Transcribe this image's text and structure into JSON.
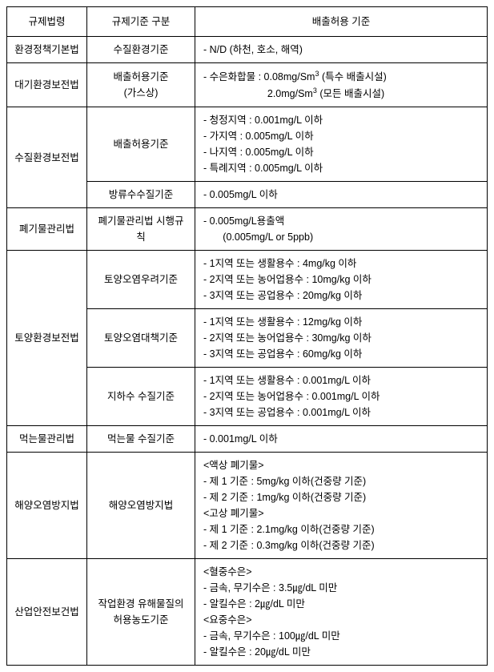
{
  "header": {
    "col1": "규제법령",
    "col2": "규제기준 구분",
    "col3": "배출허용 기준"
  },
  "rows": [
    {
      "law": "환경정책기본법",
      "criteria": "수질환경기준",
      "standard": "- N/D (하천, 호소, 해역)"
    },
    {
      "law": "대기환경보전법",
      "criteria": "배출허용기준\n(가스상)",
      "standard_prefix": "- 수은화합물 : 0.08mg/Sm",
      "standard_sup1": "3",
      "standard_mid1": "   (특수 배출시설)",
      "standard_line2_pre": "                       2.0mg/Sm",
      "standard_sup2": "3",
      "standard_mid2": "   (모든 배출시설)"
    },
    {
      "law": "수질환경보전법",
      "criteria1": "배출허용기준",
      "standard1": "- 청정지역 : 0.001mg/L 이하\n- 가지역 : 0.005mg/L 이하\n- 나지역 : 0.005mg/L 이하\n- 특례지역 : 0.005mg/L 이하",
      "criteria2": "방류수수질기준",
      "standard2": "- 0.005mg/L 이하"
    },
    {
      "law": "폐기물관리법",
      "criteria": "폐기물관리법 시행규칙",
      "standard": "- 0.005mg/L용출액\n       (0.005mg/L or 5ppb)"
    },
    {
      "law": "토양환경보전법",
      "criteria1": "토양오염우려기준",
      "standard1": "- 1지역 또는 생활용수 : 4mg/kg 이하\n- 2지역 또는 농어업용수 : 10mg/kg 이하\n- 3지역 또는 공업용수 : 20mg/kg 이하",
      "criteria2": "토양오염대책기준",
      "standard2": "- 1지역 또는 생활용수 : 12mg/kg 이하\n- 2지역 또는 농어업용수 : 30mg/kg 이하\n- 3지역 또는 공업용수 : 60mg/kg 이하",
      "criteria3": "지하수 수질기준",
      "standard3": "- 1지역 또는 생활용수 : 0.001mg/L 이하\n- 2지역 또는 농어업용수 : 0.001mg/L 이하\n- 3지역 또는 공업용수 : 0.001mg/L 이하"
    },
    {
      "law": "먹는물관리법",
      "criteria": "먹는물 수질기준",
      "standard": "- 0.001mg/L 이하"
    },
    {
      "law": "해양오염방지법",
      "criteria": "해양오염방지법",
      "standard": "<액상 폐기물>\n- 제 1 기준 : 5mg/kg 이하(건중량 기준)\n- 제 2 기준 : 1mg/kg 이하(건중량 기준)\n<고상 폐기물>\n- 제 1 기준 : 2.1mg/kg 이하(건중량 기준)\n- 제 2 기준 : 0.3mg/kg 이하(건중량 기준)"
    },
    {
      "law": "산업안전보건법",
      "criteria": "작업환경 유해물질의\n허용농도기준",
      "standard": "<혈중수은>\n- 금속, 무기수은 : 3.5㎍/dL 미만\n- 알킬수은 : 2㎍/dL 미만\n<요중수은>\n- 금속, 무기수은 : 100㎍/dL 미만\n- 알킬수은 : 20㎍/dL 미만"
    }
  ]
}
